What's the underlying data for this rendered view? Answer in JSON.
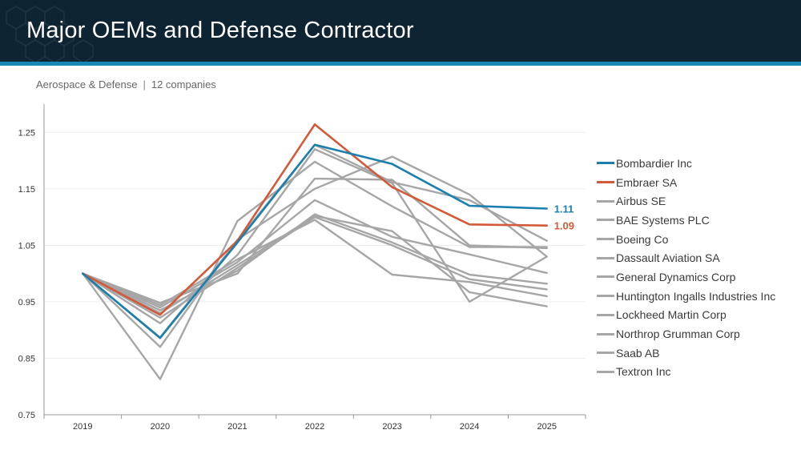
{
  "header": {
    "title": "Major OEMs and Defense Contractor"
  },
  "subtitle": {
    "sector": "Aerospace & Defense",
    "separator": "|",
    "count": "12 companies"
  },
  "colors": {
    "header_bg": "#0f2433",
    "stripe": "#1787b3",
    "bombardier": "#1a7fae",
    "embraer": "#d35a38",
    "peer": "#a6a6a6"
  },
  "chart_data": {
    "type": "line",
    "x": [
      "2019",
      "2020",
      "2021",
      "2022",
      "2023",
      "2024",
      "2025"
    ],
    "yticks": [
      "0.75",
      "0.85",
      "0.95",
      "1.05",
      "1.15",
      "1.25"
    ],
    "ylim": [
      0.75,
      1.3
    ],
    "grid": true,
    "legend_position": "right",
    "series": [
      {
        "name": "Bombardier Inc",
        "color": "#1a7fae",
        "highlight": true,
        "end_label": "1.11",
        "values": [
          1.0,
          0.886,
          1.055,
          1.228,
          1.194,
          1.12,
          1.115
        ]
      },
      {
        "name": "Embraer SA",
        "color": "#d35a38",
        "highlight": true,
        "end_label": "1.09",
        "values": [
          1.0,
          0.927,
          1.058,
          1.264,
          1.153,
          1.087,
          1.085
        ]
      },
      {
        "name": "Airbus SE",
        "color": "#a6a6a6",
        "values": [
          1.0,
          0.887,
          1.058,
          1.228,
          1.162,
          1.13,
          1.058
        ]
      },
      {
        "name": "BAE Systems PLC",
        "color": "#a6a6a6",
        "values": [
          1.0,
          0.948,
          1.0,
          1.168,
          1.166,
          1.05,
          1.045
        ]
      },
      {
        "name": "Boeing Co",
        "color": "#a6a6a6",
        "values": [
          1.0,
          0.813,
          1.093,
          1.198,
          1.119,
          1.047,
          1.047
        ]
      },
      {
        "name": "Dassault Aviation SA",
        "color": "#a6a6a6",
        "values": [
          1.0,
          0.87,
          1.06,
          1.15,
          1.207,
          1.14,
          1.03
        ]
      },
      {
        "name": "General Dynamics Corp",
        "color": "#a6a6a6",
        "values": [
          1.0,
          0.94,
          1.02,
          1.13,
          1.065,
          1.034,
          1.001
        ]
      },
      {
        "name": "Huntington Ingalls Industries Inc",
        "color": "#a6a6a6",
        "values": [
          1.0,
          0.935,
          1.005,
          1.105,
          1.055,
          0.998,
          0.982
        ]
      },
      {
        "name": "Lockheed Martin Corp",
        "color": "#a6a6a6",
        "values": [
          1.0,
          0.912,
          1.033,
          1.22,
          1.16,
          0.95,
          1.03
        ]
      },
      {
        "name": "Northrop Grumman Corp",
        "color": "#a6a6a6",
        "values": [
          1.0,
          0.922,
          1.01,
          1.1,
          1.05,
          0.99,
          0.972
        ]
      },
      {
        "name": "Saab AB",
        "color": "#a6a6a6",
        "values": [
          1.0,
          0.944,
          1.025,
          1.095,
          0.998,
          0.985,
          0.96
        ]
      },
      {
        "name": "Textron Inc",
        "color": "#a6a6a6",
        "values": [
          1.0,
          0.93,
          1.015,
          1.102,
          1.075,
          0.967,
          0.942
        ]
      }
    ]
  }
}
